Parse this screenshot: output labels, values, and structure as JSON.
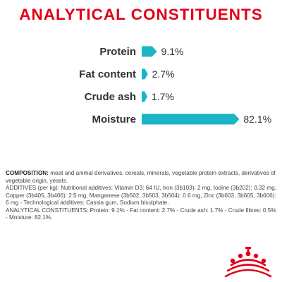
{
  "title": "ANALYTICAL CONSTITUENTS",
  "chart_data": {
    "type": "bar",
    "orientation": "horizontal",
    "title": "ANALYTICAL CONSTITUENTS",
    "categories": [
      "Protein",
      "Fat content",
      "Crude ash",
      "Moisture"
    ],
    "values": [
      9.1,
      2.7,
      1.7,
      82.1
    ],
    "value_labels": [
      "9.1%",
      "2.7%",
      "1.7%",
      "82.1%"
    ],
    "unit": "%",
    "xlim": [
      0,
      100
    ],
    "grid": false,
    "legend": "none",
    "bar_color": "#1bb5c8",
    "label_color": "#333333"
  },
  "composition": {
    "heading": "COMPOSITION:",
    "text": " meat and animal derivatives, cereals, minerals, vegetable protein extracts, derivatives of vegetable origin, yeasts.",
    "additives": "ADDITIVES (per kg): Nutritional additives: Vitamin D3: 64 IU, Iron (3b103): 2 mg, Iodine (3b202): 0.32 mg, Copper (3b405, 3b406): 2.5 mg, Manganese (3b502, 3b503, 3b504): 0.6 mg, Zinc (3b603, 3b605, 3b606): 6 mg - Technological additives: Cassia gum, Sodium bisulphate.",
    "analytical": "ANALYTICAL CONSTITUENTS: Protein: 9.1% - Fat content: 2.7% - Crude ash: 1.7% - Crude fibres: 0.5% - Moisture: 82.1%."
  },
  "colors": {
    "title": "#e2001a",
    "logo": "#e2001a"
  },
  "logo_icon": "royal-canin-crown-logo"
}
